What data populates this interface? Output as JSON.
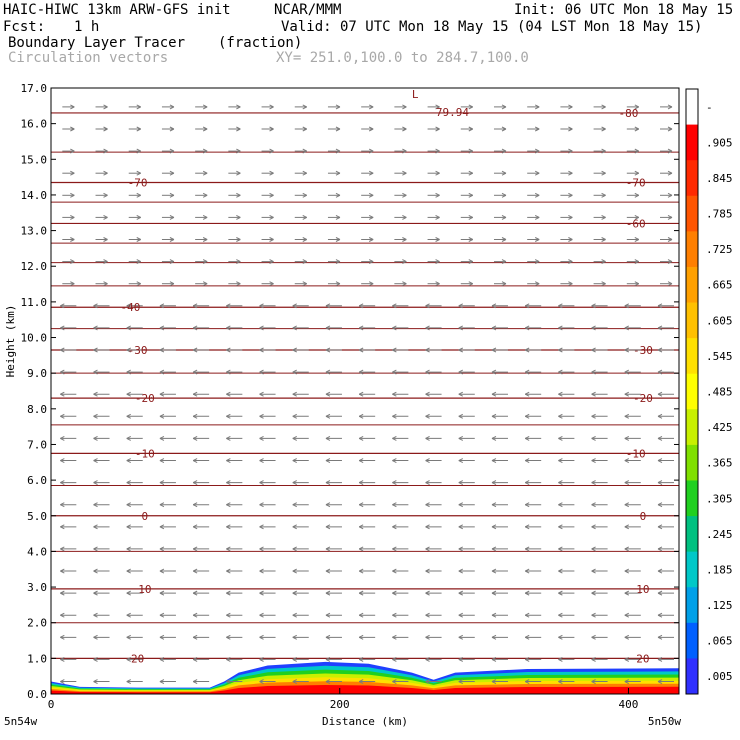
{
  "header": {
    "title_left": "HAIC-HIWC 13km ARW-GFS init",
    "title_mid": "NCAR/MMM",
    "init": "Init: 06 UTC Mon 18 May 15",
    "fcst_label": "Fcst:",
    "fcst_value": "1 h",
    "valid": "Valid: 07 UTC Mon 18 May 15 (04 LST Mon 18 May 15)",
    "field_name": "Boundary Layer Tracer",
    "field_units": "(fraction)",
    "vectors_label": "Circulation vectors",
    "xy_label": "XY= 251.0,100.0 to 284.7,100.0"
  },
  "chart_data": {
    "type": "heatmap",
    "xlabel": "Distance (km)",
    "ylabel": "Height (km)",
    "xlim": [
      0,
      435
    ],
    "ylim": [
      0,
      17
    ],
    "x_ticks": [
      0,
      200,
      400
    ],
    "y_ticks": [
      0.0,
      1.0,
      2.0,
      3.0,
      4.0,
      5.0,
      6.0,
      7.0,
      8.0,
      9.0,
      10.0,
      11.0,
      12.0,
      13.0,
      14.0,
      15.0,
      16.0,
      17.0
    ],
    "x_endpoint_labels": [
      "5n54w",
      "5n50w"
    ],
    "colorbar": {
      "labels": [
        "-",
        ".905",
        ".845",
        ".785",
        ".725",
        ".665",
        ".605",
        ".545",
        ".485",
        ".425",
        ".365",
        ".305",
        ".245",
        ".185",
        ".125",
        ".065",
        ".005"
      ],
      "colors": [
        "#ffffff",
        "#ff0000",
        "#ff2a00",
        "#ff5500",
        "#ff7f00",
        "#ffa000",
        "#ffc000",
        "#ffe000",
        "#ffff00",
        "#c8f000",
        "#80e000",
        "#20d020",
        "#00c080",
        "#00c8c8",
        "#00a0e8",
        "#0060ff",
        "#3030ff"
      ]
    },
    "tracer_surface_km": [
      [
        0,
        0.35
      ],
      [
        20,
        0.2
      ],
      [
        60,
        0.18
      ],
      [
        110,
        0.18
      ],
      [
        120,
        0.35
      ],
      [
        130,
        0.6
      ],
      [
        150,
        0.8
      ],
      [
        190,
        0.9
      ],
      [
        220,
        0.85
      ],
      [
        250,
        0.6
      ],
      [
        265,
        0.4
      ],
      [
        280,
        0.6
      ],
      [
        330,
        0.7
      ],
      [
        435,
        0.72
      ]
    ],
    "isotherms": [
      {
        "value": "20",
        "heights_km": [
          1.0,
          1.0
        ]
      },
      {
        "value": "10",
        "heights_km": [
          2.95,
          2.95
        ]
      },
      {
        "value": "0",
        "heights_km": [
          5.0,
          5.0
        ]
      },
      {
        "value": "-10",
        "heights_km": [
          6.75,
          6.75
        ]
      },
      {
        "value": "-20",
        "heights_km": [
          8.3,
          8.3
        ]
      },
      {
        "value": "-30",
        "heights_km": [
          9.65,
          9.65
        ]
      },
      {
        "value": "-40",
        "heights_km": [
          10.85,
          10.85
        ]
      },
      {
        "value": "-60",
        "heights_km": [
          13.2,
          13.2
        ]
      },
      {
        "value": "-70",
        "heights_km": [
          14.35,
          14.35
        ]
      },
      {
        "value": "-80",
        "heights_km": [
          16.3,
          16.3
        ]
      }
    ],
    "annotations": [
      {
        "text": "L",
        "x": 250,
        "y": 17.0
      },
      {
        "text": "-79.94",
        "x": 262,
        "y": 16.5
      }
    ],
    "contour_labels": [
      "-80",
      "-70",
      "-70",
      "-60",
      "-40",
      "-30",
      "-30",
      "-20",
      "-20",
      "-10",
      "-10",
      "0",
      "0",
      "10",
      "10",
      "20",
      "20"
    ]
  }
}
